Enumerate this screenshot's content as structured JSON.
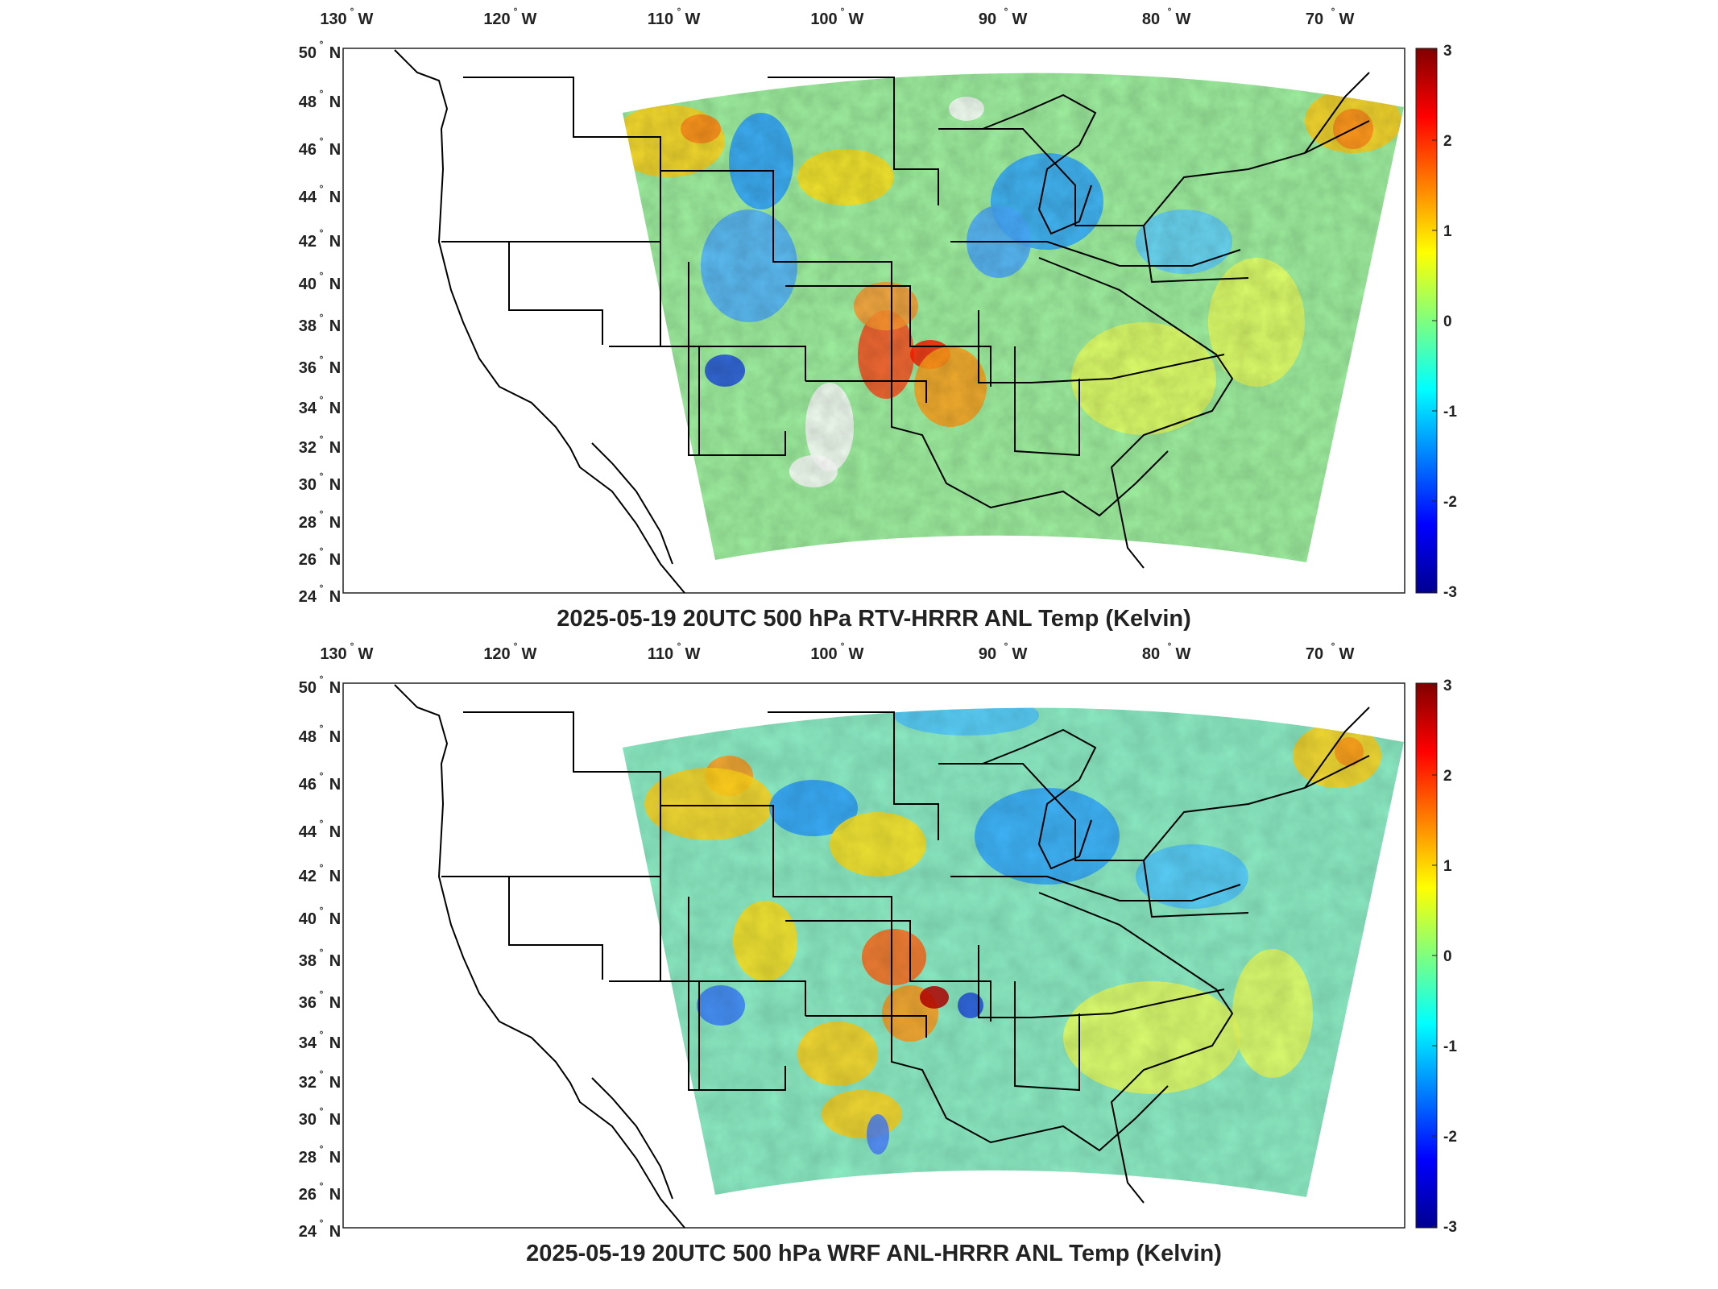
{
  "colors": {
    "jet_low": "#00008f",
    "jet_mid": "#7fff7f",
    "jet_high": "#800000",
    "land_outline": "#000000"
  },
  "panels": [
    {
      "title": "2025-05-19 20UTC 500 hPa RTV-HRRR ANL Temp (Kelvin)",
      "lon_labels": [
        {
          "deg": "130",
          "dir": "W"
        },
        {
          "deg": "120",
          "dir": "W"
        },
        {
          "deg": "110",
          "dir": "W"
        },
        {
          "deg": "100",
          "dir": "W"
        },
        {
          "deg": "90",
          "dir": "W"
        },
        {
          "deg": "80",
          "dir": "W"
        },
        {
          "deg": "70",
          "dir": "W"
        }
      ],
      "lat_labels": [
        {
          "deg": "50",
          "dir": "N"
        },
        {
          "deg": "48",
          "dir": "N"
        },
        {
          "deg": "46",
          "dir": "N"
        },
        {
          "deg": "44",
          "dir": "N"
        },
        {
          "deg": "42",
          "dir": "N"
        },
        {
          "deg": "40",
          "dir": "N"
        },
        {
          "deg": "38",
          "dir": "N"
        },
        {
          "deg": "36",
          "dir": "N"
        },
        {
          "deg": "34",
          "dir": "N"
        },
        {
          "deg": "32",
          "dir": "N"
        },
        {
          "deg": "30",
          "dir": "N"
        },
        {
          "deg": "28",
          "dir": "N"
        },
        {
          "deg": "26",
          "dir": "N"
        },
        {
          "deg": "24",
          "dir": "N"
        }
      ],
      "colorbar_ticks": [
        "3",
        "2",
        "1",
        "0",
        "-1",
        "-2",
        "-3"
      ],
      "missing_data_blotches": true
    },
    {
      "title": "2025-05-19 20UTC 500 hPa WRF ANL-HRRR ANL Temp (Kelvin)",
      "lon_labels": [
        {
          "deg": "130",
          "dir": "W"
        },
        {
          "deg": "120",
          "dir": "W"
        },
        {
          "deg": "110",
          "dir": "W"
        },
        {
          "deg": "100",
          "dir": "W"
        },
        {
          "deg": "90",
          "dir": "W"
        },
        {
          "deg": "80",
          "dir": "W"
        },
        {
          "deg": "70",
          "dir": "W"
        }
      ],
      "lat_labels": [
        {
          "deg": "50",
          "dir": "N"
        },
        {
          "deg": "48",
          "dir": "N"
        },
        {
          "deg": "46",
          "dir": "N"
        },
        {
          "deg": "44",
          "dir": "N"
        },
        {
          "deg": "42",
          "dir": "N"
        },
        {
          "deg": "40",
          "dir": "N"
        },
        {
          "deg": "38",
          "dir": "N"
        },
        {
          "deg": "36",
          "dir": "N"
        },
        {
          "deg": "34",
          "dir": "N"
        },
        {
          "deg": "32",
          "dir": "N"
        },
        {
          "deg": "30",
          "dir": "N"
        },
        {
          "deg": "28",
          "dir": "N"
        },
        {
          "deg": "26",
          "dir": "N"
        },
        {
          "deg": "24",
          "dir": "N"
        }
      ],
      "colorbar_ticks": [
        "3",
        "2",
        "1",
        "0",
        "-1",
        "-2",
        "-3"
      ],
      "missing_data_blotches": false
    }
  ]
}
